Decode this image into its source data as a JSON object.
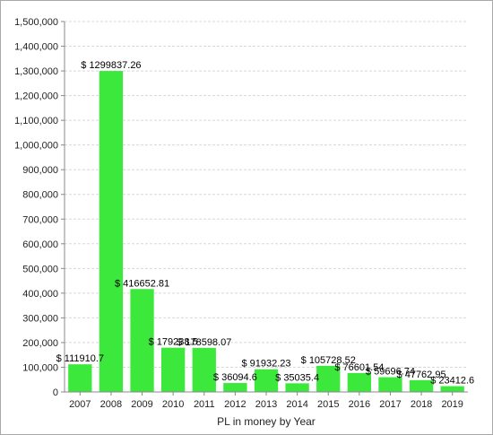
{
  "chart_data": {
    "type": "bar",
    "title": "",
    "xlabel": "PL in money by Year",
    "ylabel": "",
    "ylim": [
      0,
      1500000
    ],
    "ytick_step": 100000,
    "yticks": [
      "0",
      "100,000",
      "200,000",
      "300,000",
      "400,000",
      "500,000",
      "600,000",
      "700,000",
      "800,000",
      "900,000",
      "1,000,000",
      "1,100,000",
      "1,200,000",
      "1,300,000",
      "1,400,000",
      "1,500,000"
    ],
    "grid": true,
    "bar_color": "#3de83d",
    "categories": [
      "2007",
      "2008",
      "2009",
      "2010",
      "2011",
      "2012",
      "2013",
      "2014",
      "2015",
      "2016",
      "2017",
      "2018",
      "2019"
    ],
    "values": [
      111910.7,
      1299837.26,
      416652.81,
      179238.5,
      178598.07,
      36094.6,
      91932.23,
      35035.4,
      105728.52,
      76601.54,
      59696.74,
      47762.95,
      23412.6
    ],
    "data_labels": [
      "$ 111910.7",
      "$ 1299837.26",
      "$ 416652.81",
      "$ 179238.5",
      "$ 178598.07",
      "$ 36094.6",
      "$ 91932.23",
      "$ 35035.4",
      "$ 105728.52",
      "$ 76601.54",
      "$ 59696.74",
      "$ 47762.95",
      "$ 23412.6"
    ]
  }
}
